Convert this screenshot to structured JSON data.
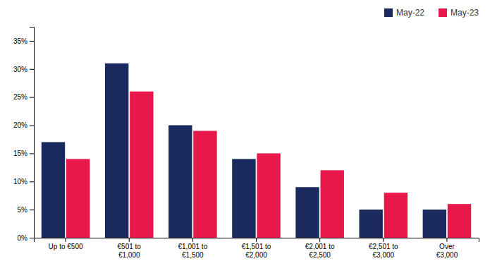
{
  "chart_data": {
    "type": "bar",
    "categories": [
      "Up to €500",
      "€501 to\n€1,000",
      "€1,001 to\n€1,500",
      "€1,501 to\n€2,000",
      "€2,001 to\n€2,500",
      "€2,501 to\n€3,000",
      "Over\n€3,000"
    ],
    "series": [
      {
        "name": "May-22",
        "color": "#1b2a5e",
        "values": [
          0.17,
          0.31,
          0.2,
          0.14,
          0.09,
          0.05,
          0.05
        ]
      },
      {
        "name": "May-23",
        "color": "#e8184a",
        "values": [
          0.14,
          0.26,
          0.19,
          0.15,
          0.12,
          0.08,
          0.06
        ]
      }
    ],
    "ylim": [
      0,
      0.375
    ],
    "yticks": [
      {
        "value": 0.0,
        "label": "0%"
      },
      {
        "value": 0.05,
        "label": "5%"
      },
      {
        "value": 0.1,
        "label": "10%"
      },
      {
        "value": 0.15,
        "label": "15%"
      },
      {
        "value": 0.2,
        "label": "20%"
      },
      {
        "value": 0.25,
        "label": "25%"
      },
      {
        "value": 0.3,
        "label": "30%"
      },
      {
        "value": 0.35,
        "label": "35%"
      }
    ],
    "grid": false,
    "legend": "upper right"
  }
}
